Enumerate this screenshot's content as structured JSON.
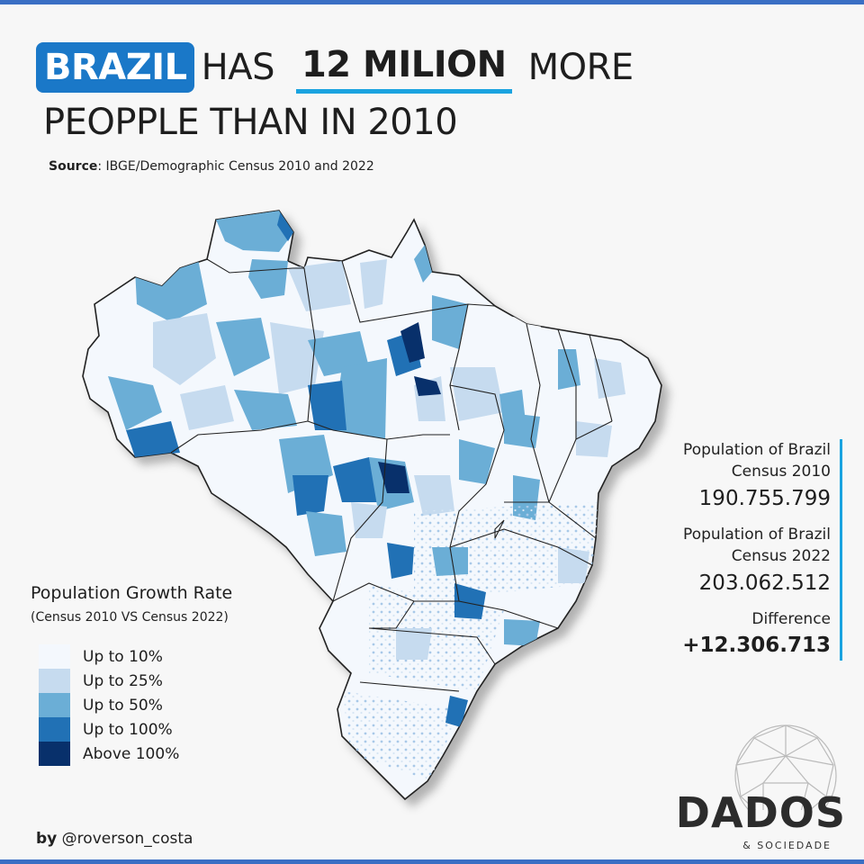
{
  "headline": {
    "country": "BRAZIL",
    "has": "HAS",
    "amount": "12 MILION",
    "more": "MORE",
    "line2": "PEOPPLE THAN IN 2010"
  },
  "source": {
    "label": "Source",
    "text": ": IBGE/Demographic Census 2010 and 2022"
  },
  "legend": {
    "title": "Population Growth Rate",
    "subtitle": "(Census 2010 VS Census 2022)",
    "items": [
      {
        "label": "Up to 10%",
        "color": "#f4f8fd"
      },
      {
        "label": "Up to 25%",
        "color": "#c6dbef"
      },
      {
        "label": "Up to 50%",
        "color": "#6baed6"
      },
      {
        "label": "Up to 100%",
        "color": "#2171b5"
      },
      {
        "label": "Above 100%",
        "color": "#08306b"
      }
    ]
  },
  "stats": {
    "census2010_label_1": "Population of Brazil",
    "census2010_label_2": "Census 2010",
    "census2010_value": "190.755.799",
    "census2022_label_1": "Population of Brazil",
    "census2022_label_2": "Census 2022",
    "census2022_value": "203.062.512",
    "difference_label": "Difference",
    "difference_value": "+12.306.713"
  },
  "credit": {
    "by": "by",
    "handle": "@roverson_costa"
  },
  "logo": {
    "name": "DADOS",
    "tagline": "& SOCIEDADE"
  },
  "colors": {
    "accent": "#1a78c8",
    "underline": "#1aa3e0",
    "bar": "#3a6fc4"
  }
}
